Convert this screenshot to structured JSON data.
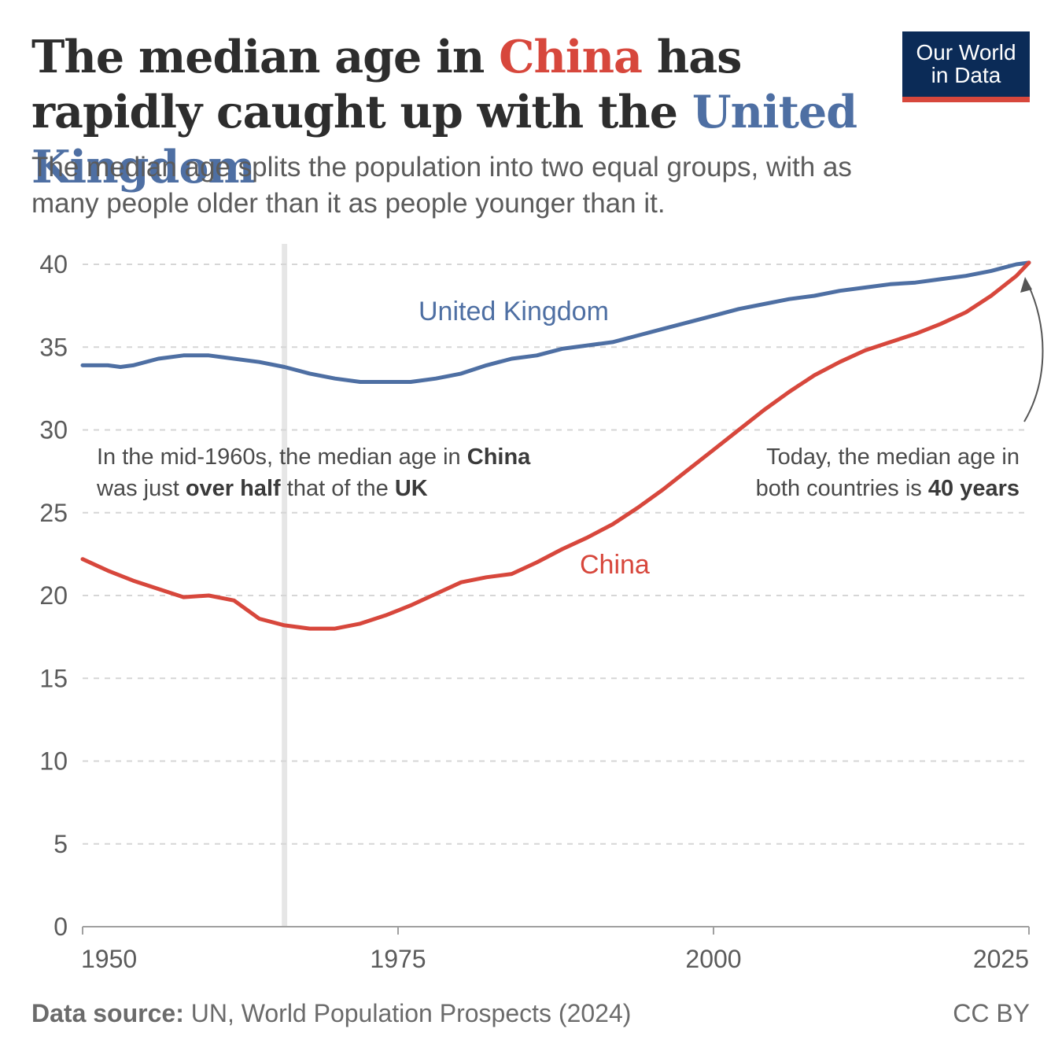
{
  "header": {
    "title_part1": "The median age in ",
    "title_china": "China",
    "title_part2": " has rapidly caught up with the ",
    "title_uk": "United Kingdom",
    "subtitle": "The median age splits the population into two equal groups, with as many people older than it as people younger than it."
  },
  "logo": {
    "line1": "Our World",
    "line2": "in Data"
  },
  "footer": {
    "source_label": "Data source:",
    "source_text": " UN, World Population Prospects (2024)",
    "license": "CC BY"
  },
  "annotations": {
    "left": {
      "line1": [
        {
          "t": "In the mid-1960s, the median age in ",
          "b": false
        },
        {
          "t": "China",
          "b": true
        }
      ],
      "line2": [
        {
          "t": "was just ",
          "b": false
        },
        {
          "t": "over half",
          "b": true
        },
        {
          "t": " that of the ",
          "b": false
        },
        {
          "t": "UK",
          "b": true
        }
      ]
    },
    "right": {
      "line1": [
        {
          "t": "Today, the median age in",
          "b": false
        }
      ],
      "line2": [
        {
          "t": "both countries is ",
          "b": false
        },
        {
          "t": "40 years",
          "b": true
        }
      ]
    }
  },
  "colors": {
    "china": "#d7473c",
    "uk": "#4e6fa3",
    "grid": "#d6d6d6",
    "highlight": "#e6e6e6",
    "axis": "#a0a0a0"
  },
  "chart_data": {
    "type": "line",
    "xlim": [
      1950,
      2025
    ],
    "ylim": [
      0,
      40
    ],
    "x_ticks": [
      1950,
      1975,
      2000,
      2025
    ],
    "y_ticks": [
      0,
      5,
      10,
      15,
      20,
      25,
      30,
      35,
      40
    ],
    "grid": true,
    "highlight_year": 1966,
    "series": [
      {
        "name": "United Kingdom",
        "color": "#4e6fa3",
        "points": [
          [
            1950,
            33.9
          ],
          [
            1952,
            33.9
          ],
          [
            1953,
            33.8
          ],
          [
            1954,
            33.9
          ],
          [
            1956,
            34.3
          ],
          [
            1958,
            34.5
          ],
          [
            1960,
            34.5
          ],
          [
            1962,
            34.3
          ],
          [
            1964,
            34.1
          ],
          [
            1966,
            33.8
          ],
          [
            1968,
            33.4
          ],
          [
            1970,
            33.1
          ],
          [
            1972,
            32.9
          ],
          [
            1974,
            32.9
          ],
          [
            1976,
            32.9
          ],
          [
            1978,
            33.1
          ],
          [
            1980,
            33.4
          ],
          [
            1982,
            33.9
          ],
          [
            1984,
            34.3
          ],
          [
            1986,
            34.5
          ],
          [
            1988,
            34.9
          ],
          [
            1990,
            35.1
          ],
          [
            1992,
            35.3
          ],
          [
            1994,
            35.7
          ],
          [
            1996,
            36.1
          ],
          [
            1998,
            36.5
          ],
          [
            2000,
            36.9
          ],
          [
            2002,
            37.3
          ],
          [
            2004,
            37.6
          ],
          [
            2006,
            37.9
          ],
          [
            2008,
            38.1
          ],
          [
            2010,
            38.4
          ],
          [
            2012,
            38.6
          ],
          [
            2014,
            38.8
          ],
          [
            2016,
            38.9
          ],
          [
            2018,
            39.1
          ],
          [
            2020,
            39.3
          ],
          [
            2022,
            39.6
          ],
          [
            2024,
            40.0
          ],
          [
            2025,
            40.1
          ]
        ]
      },
      {
        "name": "China",
        "color": "#d7473c",
        "points": [
          [
            1950,
            22.2
          ],
          [
            1952,
            21.5
          ],
          [
            1954,
            20.9
          ],
          [
            1956,
            20.4
          ],
          [
            1958,
            19.9
          ],
          [
            1960,
            20.0
          ],
          [
            1962,
            19.7
          ],
          [
            1964,
            18.6
          ],
          [
            1966,
            18.2
          ],
          [
            1968,
            18.0
          ],
          [
            1970,
            18.0
          ],
          [
            1972,
            18.3
          ],
          [
            1974,
            18.8
          ],
          [
            1976,
            19.4
          ],
          [
            1978,
            20.1
          ],
          [
            1980,
            20.8
          ],
          [
            1982,
            21.1
          ],
          [
            1984,
            21.3
          ],
          [
            1986,
            22.0
          ],
          [
            1988,
            22.8
          ],
          [
            1990,
            23.5
          ],
          [
            1992,
            24.3
          ],
          [
            1994,
            25.3
          ],
          [
            1996,
            26.4
          ],
          [
            1998,
            27.6
          ],
          [
            2000,
            28.8
          ],
          [
            2002,
            30.0
          ],
          [
            2004,
            31.2
          ],
          [
            2006,
            32.3
          ],
          [
            2008,
            33.3
          ],
          [
            2010,
            34.1
          ],
          [
            2012,
            34.8
          ],
          [
            2014,
            35.3
          ],
          [
            2016,
            35.8
          ],
          [
            2018,
            36.4
          ],
          [
            2020,
            37.1
          ],
          [
            2022,
            38.1
          ],
          [
            2024,
            39.3
          ],
          [
            2025,
            40.1
          ]
        ]
      }
    ],
    "labels": {
      "uk": "United Kingdom",
      "china": "China"
    }
  }
}
